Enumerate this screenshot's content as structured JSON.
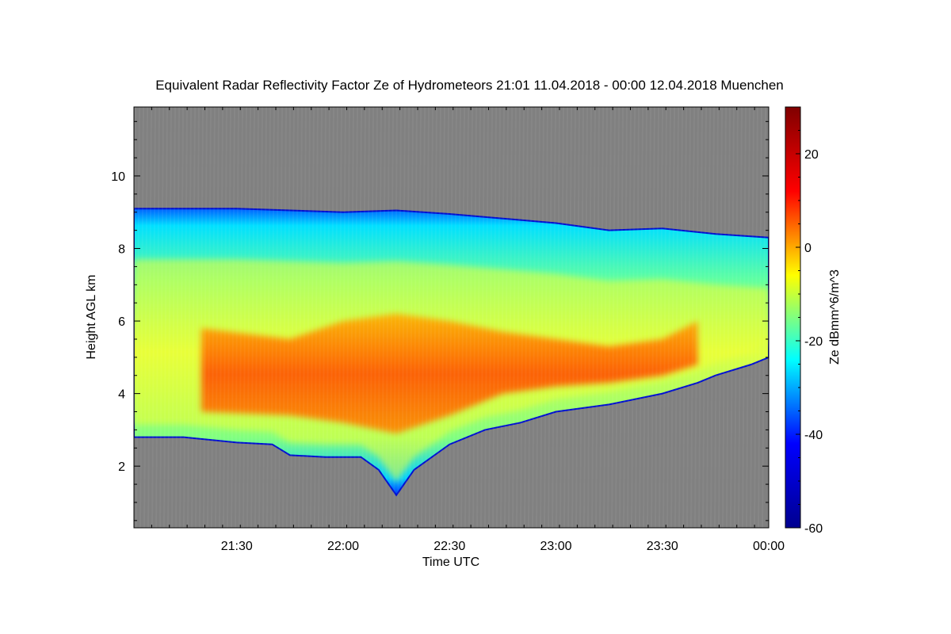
{
  "chart_data": {
    "type": "heatmap",
    "title": "Equivalent Radar Reflectivity Factor Ze of Hydrometeors   21:01 11.04.2018 - 00:00 12.04.2018 Muenchen",
    "xlabel": "Time UTC",
    "ylabel": "Height AGL km",
    "colorbar_label": "Ze dBmm^6/m^3",
    "x_ticks": [
      "21:30",
      "22:00",
      "22:30",
      "23:00",
      "23:30",
      "00:00"
    ],
    "x_range": [
      "21:01",
      "00:00"
    ],
    "y_ticks": [
      2,
      4,
      6,
      8,
      10
    ],
    "y_range": [
      0.3,
      11.9
    ],
    "colorbar_ticks": [
      20,
      0,
      -20,
      -40,
      -60
    ],
    "colorbar_range": [
      -60,
      30
    ],
    "colormap": [
      "#00008f",
      "#0000ff",
      "#00ffff",
      "#ffff00",
      "#ff0000",
      "#800000"
    ],
    "background_color": "#808080",
    "cloud_base_km": [
      {
        "time": "21:01",
        "h": 2.8
      },
      {
        "time": "21:15",
        "h": 2.8
      },
      {
        "time": "21:30",
        "h": 2.65
      },
      {
        "time": "21:40",
        "h": 2.6
      },
      {
        "time": "21:45",
        "h": 2.3
      },
      {
        "time": "21:55",
        "h": 2.25
      },
      {
        "time": "22:05",
        "h": 2.25
      },
      {
        "time": "22:10",
        "h": 1.9
      },
      {
        "time": "22:15",
        "h": 1.2
      },
      {
        "time": "22:20",
        "h": 1.9
      },
      {
        "time": "22:30",
        "h": 2.6
      },
      {
        "time": "22:40",
        "h": 3.0
      },
      {
        "time": "22:50",
        "h": 3.2
      },
      {
        "time": "23:00",
        "h": 3.5
      },
      {
        "time": "23:15",
        "h": 3.7
      },
      {
        "time": "23:30",
        "h": 4.0
      },
      {
        "time": "23:40",
        "h": 4.3
      },
      {
        "time": "23:45",
        "h": 4.5
      },
      {
        "time": "23:55",
        "h": 4.8
      },
      {
        "time": "00:00",
        "h": 5.0
      }
    ],
    "cloud_top_km": [
      {
        "time": "21:01",
        "h": 9.1
      },
      {
        "time": "21:30",
        "h": 9.1
      },
      {
        "time": "22:00",
        "h": 9.0
      },
      {
        "time": "22:15",
        "h": 9.05
      },
      {
        "time": "22:30",
        "h": 8.95
      },
      {
        "time": "23:00",
        "h": 8.7
      },
      {
        "time": "23:15",
        "h": 8.5
      },
      {
        "time": "23:30",
        "h": 8.55
      },
      {
        "time": "23:45",
        "h": 8.4
      },
      {
        "time": "00:00",
        "h": 8.3
      }
    ],
    "core_region_km": [
      {
        "time": "21:20",
        "top": 5.8,
        "bottom": 3.5
      },
      {
        "time": "21:45",
        "top": 5.5,
        "bottom": 3.4
      },
      {
        "time": "22:00",
        "top": 6.0,
        "bottom": 3.2
      },
      {
        "time": "22:15",
        "top": 6.2,
        "bottom": 2.9
      },
      {
        "time": "22:30",
        "top": 6.0,
        "bottom": 3.4
      },
      {
        "time": "22:45",
        "top": 5.7,
        "bottom": 4.0
      },
      {
        "time": "23:00",
        "top": 5.5,
        "bottom": 4.2
      },
      {
        "time": "23:15",
        "top": 5.3,
        "bottom": 4.3
      },
      {
        "time": "23:30",
        "top": 5.5,
        "bottom": 4.5
      },
      {
        "time": "23:40",
        "top": 6.0,
        "bottom": 4.8
      }
    ]
  }
}
